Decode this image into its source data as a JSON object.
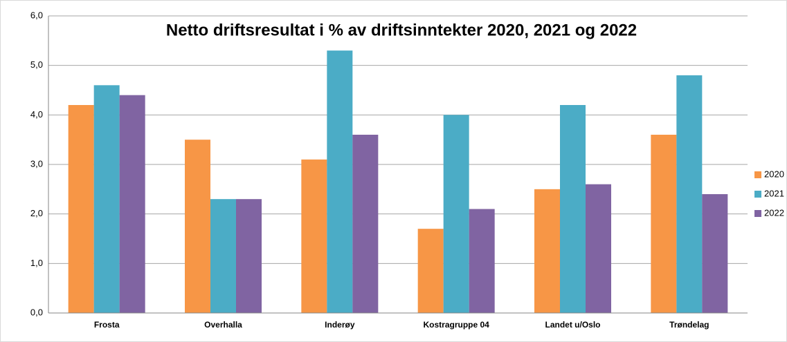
{
  "chart_data": {
    "type": "bar",
    "title": "Netto driftsresultat i % av driftsinntekter 2020, 2021 og 2022",
    "categories": [
      "Frosta",
      "Overhalla",
      "Inderøy",
      "Kostragruppe 04",
      "Landet u/Oslo",
      "Trøndelag"
    ],
    "series": [
      {
        "name": "2020",
        "color": "#f79646",
        "values": [
          4.2,
          3.5,
          3.1,
          1.7,
          2.5,
          3.6
        ]
      },
      {
        "name": "2021",
        "color": "#4bacc6",
        "values": [
          4.6,
          2.3,
          5.3,
          4.0,
          4.2,
          4.8
        ]
      },
      {
        "name": "2022",
        "color": "#8064a2",
        "values": [
          4.4,
          2.3,
          3.6,
          2.1,
          2.6,
          2.4
        ]
      }
    ],
    "ylim": [
      0,
      6
    ],
    "yticks": [
      {
        "value": 0,
        "label": "0,0"
      },
      {
        "value": 1,
        "label": "1,0"
      },
      {
        "value": 2,
        "label": "2,0"
      },
      {
        "value": 3,
        "label": "3,0"
      },
      {
        "value": 4,
        "label": "4,0"
      },
      {
        "value": 5,
        "label": "5,0"
      },
      {
        "value": 6,
        "label": "6,0"
      }
    ],
    "grid": true,
    "legend": "right"
  }
}
